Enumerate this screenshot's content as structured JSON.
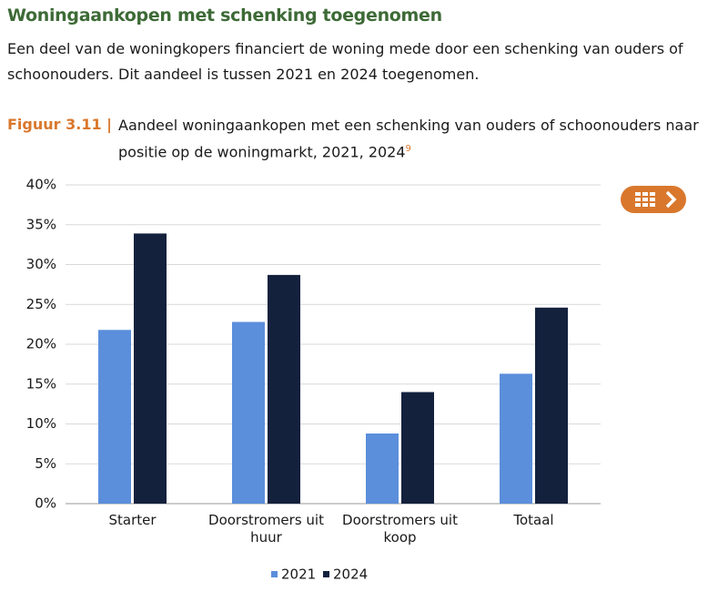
{
  "header": {
    "title": "Woningaankopen met schenking toegenomen",
    "intro": "Een deel van de woningkopers financiert de woning mede door een schenking van ouders of schoonouders. Dit aandeel is tussen 2021 en 2024 toegenomen."
  },
  "figure": {
    "label": "Figuur 3.11 |",
    "caption": "Aandeel woningaankopen met een schenking van ouders of schoonouders naar positie op de woningmarkt, 2021, 2024",
    "note_ref": "9"
  },
  "chart_data": {
    "type": "bar",
    "categories": [
      "Starter",
      "Doorstromers uit huur",
      "Doorstromers uit koop",
      "Totaal"
    ],
    "series": [
      {
        "name": "2021",
        "color": "#5b8edb",
        "values": [
          21.8,
          22.8,
          8.8,
          16.3
        ]
      },
      {
        "name": "2024",
        "color": "#14213d",
        "values": [
          33.9,
          28.7,
          14.0,
          24.6
        ]
      }
    ],
    "ylim": [
      0,
      40
    ],
    "yticks": [
      {
        "value": 0,
        "label": "0%"
      },
      {
        "value": 5,
        "label": "5%"
      },
      {
        "value": 10,
        "label": "10%"
      },
      {
        "value": 15,
        "label": "15%"
      },
      {
        "value": 20,
        "label": "20%"
      },
      {
        "value": 25,
        "label": "25%"
      },
      {
        "value": 30,
        "label": "30%"
      },
      {
        "value": 35,
        "label": "35%"
      },
      {
        "value": 40,
        "label": "40%"
      }
    ],
    "grid": true,
    "legend": "bottom"
  }
}
